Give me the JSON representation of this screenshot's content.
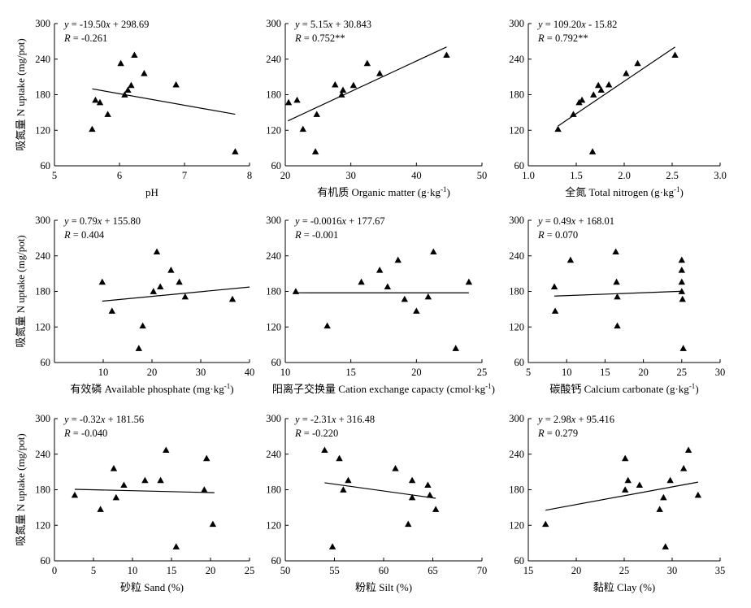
{
  "colors": {
    "ink": "#000000",
    "background": "#ffffff"
  },
  "chart_data": [
    {
      "type": "scatter",
      "title": "",
      "ylabel": "吸氮量 N uptake (mg/pot)",
      "xlabel": "pH",
      "xlim": [
        5,
        8
      ],
      "ylim": [
        60,
        300
      ],
      "xticks": [
        5,
        6,
        7,
        8
      ],
      "yticks": [
        60,
        120,
        180,
        240,
        300
      ],
      "points": [
        [
          5.58,
          122
        ],
        [
          5.63,
          171
        ],
        [
          5.7,
          167
        ],
        [
          5.82,
          147
        ],
        [
          6.02,
          233
        ],
        [
          6.08,
          180
        ],
        [
          6.13,
          188
        ],
        [
          6.18,
          196
        ],
        [
          6.23,
          247
        ],
        [
          6.38,
          216
        ],
        [
          6.87,
          197
        ],
        [
          7.78,
          84
        ]
      ],
      "fit": {
        "slope": -19.5,
        "intercept": 298.69,
        "x": [
          5.58,
          7.78
        ]
      },
      "equation": "y = -19.50x + 298.69",
      "r_text": "R = -0.261"
    },
    {
      "type": "scatter",
      "title": "",
      "ylabel": "",
      "xlabel": "有机质 Organic matter (g·kg⁻¹)",
      "xlim": [
        20,
        50
      ],
      "ylim": [
        60,
        300
      ],
      "xticks": [
        20,
        30,
        40,
        50
      ],
      "yticks": [
        60,
        120,
        180,
        240,
        300
      ],
      "points": [
        [
          20.5,
          167
        ],
        [
          21.8,
          171
        ],
        [
          22.7,
          122
        ],
        [
          24.6,
          84
        ],
        [
          24.8,
          147
        ],
        [
          27.6,
          197
        ],
        [
          28.6,
          180
        ],
        [
          28.8,
          188
        ],
        [
          30.4,
          196
        ],
        [
          32.5,
          233
        ],
        [
          34.4,
          216
        ],
        [
          44.6,
          247
        ]
      ],
      "fit": {
        "slope": 5.15,
        "intercept": 30.843,
        "x": [
          20.4,
          44.6
        ]
      },
      "equation": "y = 5.15x + 30.843",
      "r_text": "R = 0.752**"
    },
    {
      "type": "scatter",
      "title": "",
      "ylabel": "",
      "xlabel": "全氮 Total nitrogen (g·kg⁻¹)",
      "xlim": [
        1.0,
        3.0
      ],
      "ylim": [
        60,
        300
      ],
      "xticks": [
        "1.0",
        "1.5",
        "2.0",
        "2.5",
        "3.0"
      ],
      "yticks": [
        60,
        120,
        180,
        240,
        300
      ],
      "points": [
        [
          1.31,
          122
        ],
        [
          1.47,
          147
        ],
        [
          1.53,
          167
        ],
        [
          1.56,
          171
        ],
        [
          1.67,
          84
        ],
        [
          1.68,
          180
        ],
        [
          1.73,
          196
        ],
        [
          1.76,
          188
        ],
        [
          1.84,
          197
        ],
        [
          2.02,
          216
        ],
        [
          2.14,
          233
        ],
        [
          2.53,
          247
        ]
      ],
      "fit": {
        "slope": 109.2,
        "intercept": -15.82,
        "x": [
          1.31,
          2.53
        ]
      },
      "equation": "y = 109.20x - 15.82",
      "r_text": "R = 0.792**"
    },
    {
      "type": "scatter",
      "title": "",
      "ylabel": "吸氮量 N uptake (mg/pot)",
      "xlabel": "有效磷 Available phosphate (mg·kg⁻¹)",
      "xlim": [
        0,
        40
      ],
      "ylim": [
        60,
        300
      ],
      "xticks": [
        10,
        20,
        30,
        40
      ],
      "yticks": [
        60,
        120,
        180,
        240,
        300
      ],
      "points": [
        [
          9.8,
          196
        ],
        [
          11.8,
          147
        ],
        [
          17.3,
          84
        ],
        [
          18.1,
          122
        ],
        [
          20.3,
          180
        ],
        [
          21.0,
          247
        ],
        [
          21.7,
          188
        ],
        [
          23.9,
          216
        ],
        [
          25.6,
          196
        ],
        [
          26.8,
          171
        ],
        [
          36.5,
          167
        ]
      ],
      "fit": {
        "slope": 0.79,
        "intercept": 155.8,
        "x": [
          9.8,
          40
        ]
      },
      "equation": "y = 0.79x + 155.80",
      "r_text": "R = 0.404"
    },
    {
      "type": "scatter",
      "title": "",
      "ylabel": "",
      "xlabel": "阳离子交换量 Cation exchange capacty (cmol·kg⁻¹)",
      "xlim": [
        10,
        25
      ],
      "ylim": [
        60,
        300
      ],
      "xticks": [
        10,
        15,
        20,
        25
      ],
      "yticks": [
        60,
        120,
        180,
        240,
        300
      ],
      "points": [
        [
          10.8,
          180
        ],
        [
          13.2,
          122
        ],
        [
          15.8,
          196
        ],
        [
          17.2,
          216
        ],
        [
          17.8,
          188
        ],
        [
          18.6,
          233
        ],
        [
          19.1,
          167
        ],
        [
          20.0,
          147
        ],
        [
          20.9,
          171
        ],
        [
          21.3,
          247
        ],
        [
          23.0,
          84
        ],
        [
          24.0,
          196
        ]
      ],
      "fit": {
        "slope": -0.0016,
        "intercept": 177.67,
        "x": [
          10.8,
          24.0
        ]
      },
      "equation": "y = -0.0016x + 177.67",
      "r_text": "R = -0.001"
    },
    {
      "type": "scatter",
      "title": "",
      "ylabel": "",
      "xlabel": "碳酸钙 Calcium carbonate (g·kg⁻¹)",
      "xlim": [
        5,
        30
      ],
      "ylim": [
        60,
        300
      ],
      "xticks": [
        5,
        10,
        15,
        20,
        25,
        30
      ],
      "yticks": [
        60,
        120,
        180,
        240,
        300
      ],
      "points": [
        [
          8.4,
          188
        ],
        [
          8.5,
          147
        ],
        [
          10.5,
          233
        ],
        [
          16.4,
          247
        ],
        [
          16.5,
          196
        ],
        [
          16.6,
          171
        ],
        [
          16.6,
          122
        ],
        [
          25.0,
          233
        ],
        [
          25.0,
          216
        ],
        [
          25.0,
          196
        ],
        [
          25.0,
          180
        ],
        [
          25.1,
          167
        ],
        [
          25.2,
          84
        ]
      ],
      "fit": {
        "slope": 0.49,
        "intercept": 168.01,
        "x": [
          8.4,
          25.2
        ]
      },
      "equation": "y = 0.49x + 168.01",
      "r_text": "R = 0.070"
    },
    {
      "type": "scatter",
      "title": "",
      "ylabel": "吸氮量 N uptake (mg/pot)",
      "xlabel": "砂粒 Sand (%)",
      "xlim": [
        0,
        25
      ],
      "ylim": [
        60,
        300
      ],
      "xticks": [
        0,
        5,
        10,
        15,
        20,
        25
      ],
      "yticks": [
        60,
        120,
        180,
        240,
        300
      ],
      "points": [
        [
          2.6,
          171
        ],
        [
          5.9,
          147
        ],
        [
          7.6,
          216
        ],
        [
          7.9,
          167
        ],
        [
          8.9,
          188
        ],
        [
          11.6,
          196
        ],
        [
          13.6,
          196
        ],
        [
          14.3,
          247
        ],
        [
          15.6,
          84
        ],
        [
          19.2,
          180
        ],
        [
          19.5,
          233
        ],
        [
          20.3,
          122
        ]
      ],
      "fit": {
        "slope": -0.32,
        "intercept": 181.56,
        "x": [
          2.6,
          20.5
        ]
      },
      "equation": "y = -0.32x + 181.56",
      "r_text": "R = -0.040"
    },
    {
      "type": "scatter",
      "title": "",
      "ylabel": "",
      "xlabel": "粉粒 Silt (%)",
      "xlim": [
        50,
        70
      ],
      "ylim": [
        60,
        300
      ],
      "xticks": [
        50,
        55,
        60,
        65,
        70
      ],
      "yticks": [
        60,
        120,
        180,
        240,
        300
      ],
      "points": [
        [
          54.0,
          247
        ],
        [
          54.8,
          84
        ],
        [
          55.5,
          233
        ],
        [
          55.9,
          180
        ],
        [
          56.4,
          196
        ],
        [
          61.2,
          216
        ],
        [
          62.5,
          122
        ],
        [
          62.9,
          196
        ],
        [
          62.9,
          167
        ],
        [
          64.5,
          188
        ],
        [
          64.7,
          171
        ],
        [
          65.3,
          147
        ]
      ],
      "fit": {
        "slope": -2.31,
        "intercept": 316.48,
        "x": [
          54.0,
          65.3
        ]
      },
      "equation": "y = -2.31x + 316.48",
      "r_text": "R = -0.220"
    },
    {
      "type": "scatter",
      "title": "",
      "ylabel": "",
      "xlabel": "黏粒 Clay (%)",
      "xlim": [
        15,
        35
      ],
      "ylim": [
        60,
        300
      ],
      "xticks": [
        15,
        20,
        25,
        30,
        35
      ],
      "yticks": [
        60,
        120,
        180,
        240,
        300
      ],
      "points": [
        [
          16.8,
          122
        ],
        [
          25.1,
          233
        ],
        [
          25.1,
          180
        ],
        [
          25.4,
          196
        ],
        [
          26.6,
          188
        ],
        [
          28.7,
          147
        ],
        [
          29.1,
          167
        ],
        [
          29.3,
          84
        ],
        [
          29.8,
          196
        ],
        [
          31.2,
          216
        ],
        [
          31.7,
          247
        ],
        [
          32.7,
          171
        ]
      ],
      "fit": {
        "slope": 2.98,
        "intercept": 95.416,
        "x": [
          16.8,
          32.7
        ]
      },
      "equation": "y = 2.98x + 95.416",
      "r_text": "R = 0.279"
    }
  ]
}
